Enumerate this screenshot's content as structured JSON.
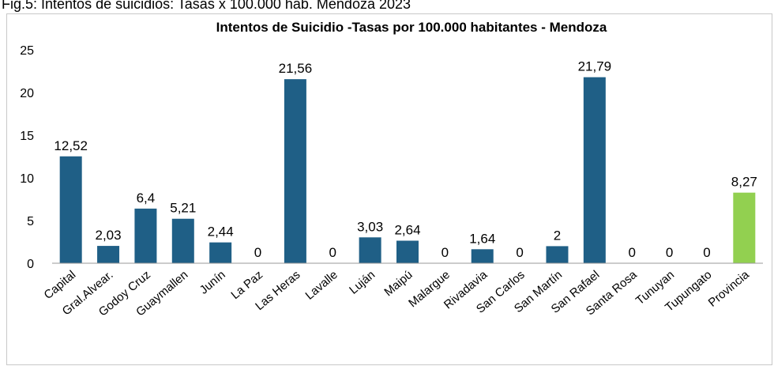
{
  "caption": "Fig.5: Intentos de suicidios: Tasas x 100.000 hab. Mendoza 2023",
  "chart_data": {
    "type": "bar",
    "title": "Intentos de Suicidio -Tasas por 100.000 habitantes - Mendoza",
    "categories": [
      "Capital",
      "Gral.Alvear.",
      "Godoy Cruz",
      "Guaymallen",
      "Junín",
      "La Paz",
      "Las Heras",
      "Lavalle",
      "Luján",
      "Maipú",
      "Malargue",
      "Rivadavia",
      "San Carlos",
      "San Martín",
      "San Rafael",
      "Santa Rosa",
      "Tunuyan",
      "Tupungato",
      "Provincia"
    ],
    "values": [
      12.52,
      2.03,
      6.4,
      5.21,
      2.44,
      0,
      21.56,
      0,
      3.03,
      2.64,
      0,
      1.64,
      0,
      2,
      21.79,
      0,
      0,
      0,
      8.27
    ],
    "value_labels": [
      "12,52",
      "2,03",
      "6,4",
      "5,21",
      "2,44",
      "0",
      "21,56",
      "0",
      "3,03",
      "2,64",
      "0",
      "1,64",
      "0",
      "2",
      "21,79",
      "0",
      "0",
      "0",
      "8,27"
    ],
    "y_ticks": [
      "0",
      "5",
      "10",
      "15",
      "20",
      "25"
    ],
    "ylim": [
      0,
      25
    ],
    "grid": false,
    "legend": "none",
    "colors": {
      "bar": "#1f5f86",
      "highlight": "#92d050",
      "axis": "#9a9a9a"
    },
    "highlight_category": "Provincia"
  }
}
